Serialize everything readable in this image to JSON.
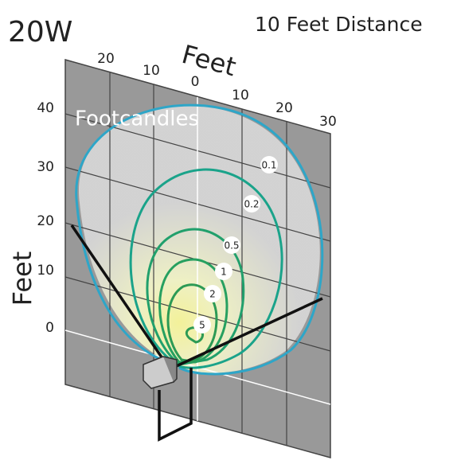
{
  "header": {
    "title": "20W",
    "subtitle": "10 Feet Distance"
  },
  "axes": {
    "top_label": "Feet",
    "left_label": "Feet",
    "top_ticks": [
      "20",
      "10",
      "0",
      "10",
      "20",
      "30"
    ],
    "left_ticks": [
      "40",
      "30",
      "20",
      "10",
      "0"
    ]
  },
  "legend_title": "Footcandles",
  "contours": [
    "0.1",
    "0.2",
    "0.5",
    "1",
    "2",
    "5"
  ]
}
